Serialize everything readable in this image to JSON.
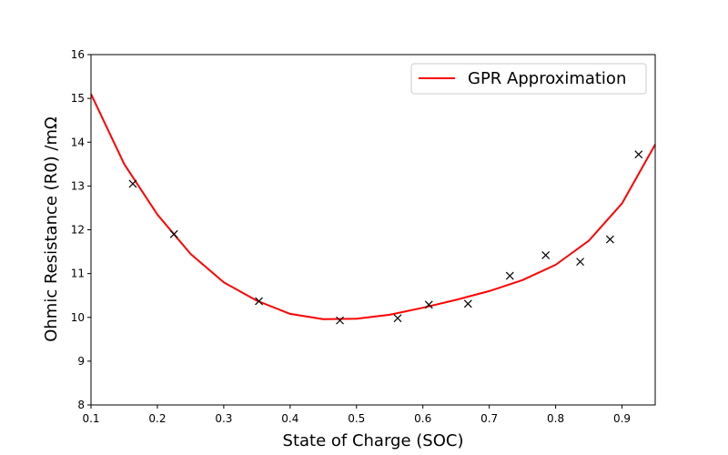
{
  "chart_data": {
    "type": "line",
    "xlabel": "State of Charge (SOC)",
    "ylabel": "Ohmic Resistance (R0) /mΩ",
    "xlim": [
      0.1,
      0.95
    ],
    "ylim": [
      8,
      16
    ],
    "x_ticks": [
      "0.1",
      "0.2",
      "0.3",
      "0.4",
      "0.5",
      "0.6",
      "0.7",
      "0.8",
      "0.9"
    ],
    "x_tick_values": [
      0.1,
      0.2,
      0.3,
      0.4,
      0.5,
      0.6,
      0.7,
      0.8,
      0.9
    ],
    "y_ticks": [
      "8",
      "9",
      "10",
      "11",
      "12",
      "13",
      "14",
      "15",
      "16"
    ],
    "y_tick_values": [
      8,
      9,
      10,
      11,
      12,
      13,
      14,
      15,
      16
    ],
    "grid": false,
    "legend_position": "top-right",
    "series": [
      {
        "name": "GPR Approximation",
        "kind": "line",
        "color": "#ff0000",
        "x": [
          0.1,
          0.15,
          0.2,
          0.25,
          0.3,
          0.35,
          0.4,
          0.45,
          0.5,
          0.55,
          0.6,
          0.65,
          0.7,
          0.75,
          0.8,
          0.85,
          0.9,
          0.95
        ],
        "y": [
          15.1,
          13.5,
          12.35,
          11.45,
          10.8,
          10.38,
          10.08,
          9.96,
          9.97,
          10.06,
          10.22,
          10.4,
          10.6,
          10.85,
          11.2,
          11.75,
          12.6,
          13.95
        ]
      },
      {
        "kind": "scatter",
        "marker": "x",
        "color": "#000000",
        "x": [
          0.163,
          0.225,
          0.353,
          0.475,
          0.562,
          0.609,
          0.668,
          0.731,
          0.785,
          0.837,
          0.882,
          0.925
        ],
        "y": [
          13.05,
          11.9,
          10.37,
          9.93,
          9.98,
          10.29,
          10.31,
          10.95,
          11.42,
          11.27,
          11.78,
          13.72
        ]
      }
    ]
  }
}
